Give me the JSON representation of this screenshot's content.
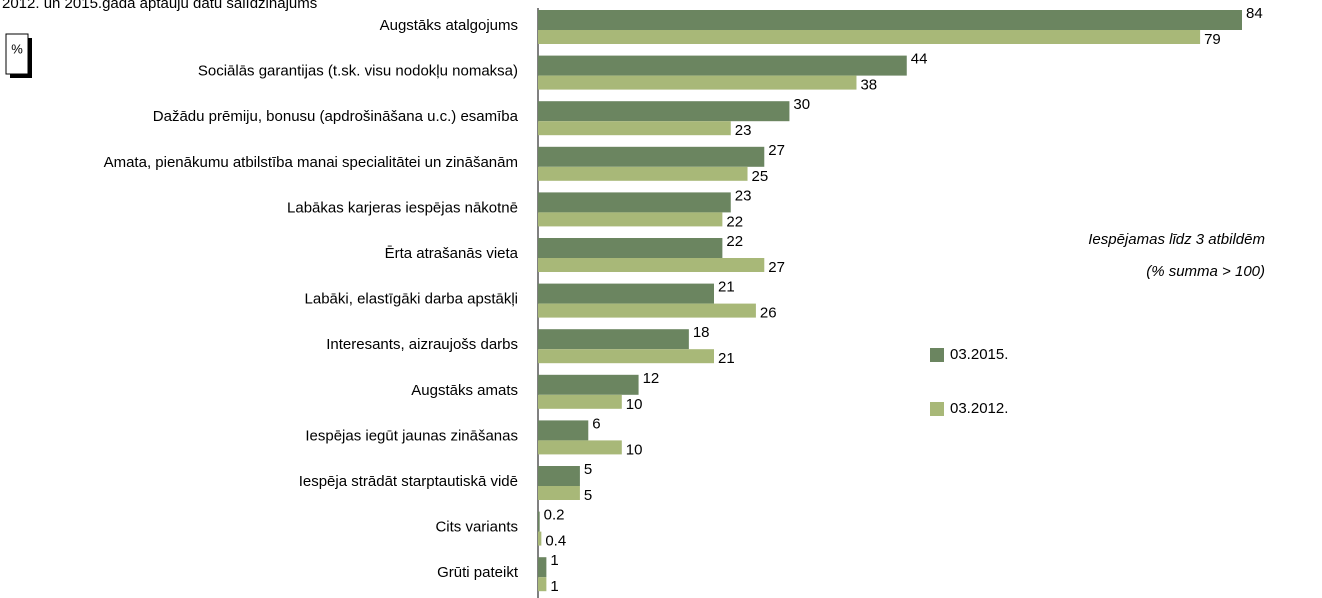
{
  "chart_data": {
    "type": "barh",
    "title": "2012. un 2015.gadā aptauju datu salīdzinājums",
    "unit_box": "%",
    "annotations": [
      "Iespējamas līdz 3 atbildēm",
      "(% summa > 100)"
    ],
    "categories": [
      "Augstāks atalgojums",
      "Sociālās garantijas (t.sk. visu nodokļu nomaksa)",
      "Dažādu prēmiju, bonusu (apdrošināšana u.c.) esamība",
      "Amata, pienākumu atbilstība manai specialitātei un zināšanām",
      "Labākas karjeras iespējas nākotnē",
      "Ērta atrašanās vieta",
      "Labāki, elastīgāki darba apstākļi",
      "Interesants, aizraujošs darbs",
      "Augstāks amats",
      "Iespējas iegūt jaunas zināšanas",
      "Iespēja strādāt starptautiskā vidē",
      "Cits variants",
      "Grūti pateikt"
    ],
    "series": [
      {
        "name": "03.2015.",
        "color": "#6b8560",
        "values": [
          84,
          44,
          30,
          27,
          23,
          22,
          21,
          18,
          12,
          6,
          5,
          0.2,
          1
        ]
      },
      {
        "name": "03.2012.",
        "color": "#a8b878",
        "values": [
          79,
          38,
          23,
          25,
          22,
          27,
          26,
          21,
          10,
          10,
          5,
          0.4,
          1
        ]
      }
    ],
    "xlim": [
      0,
      84
    ]
  }
}
